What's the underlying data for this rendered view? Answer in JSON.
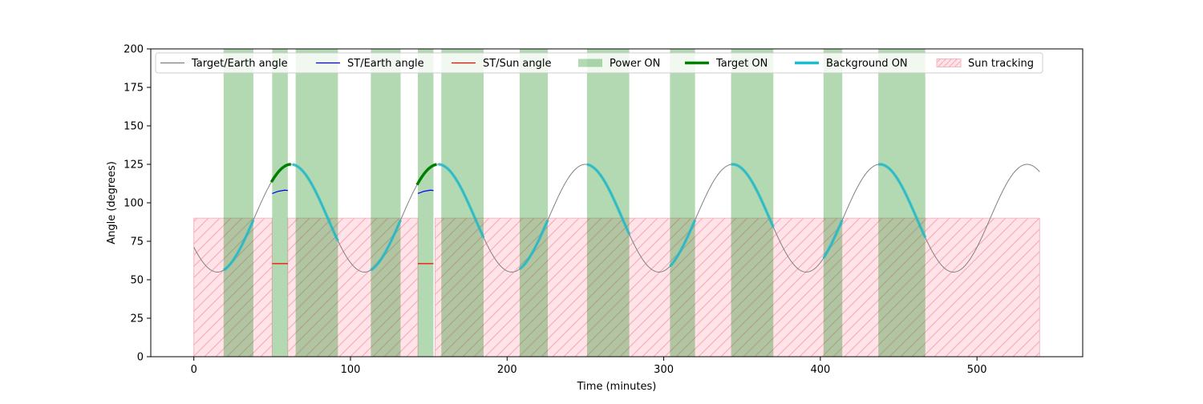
{
  "chart_data": {
    "type": "line",
    "title": "",
    "xlabel": "Time (minutes)",
    "ylabel": "Angle (degrees)",
    "xlim": [
      -27.5,
      567.5
    ],
    "ylim": [
      0,
      200
    ],
    "xticks": [
      0,
      100,
      200,
      300,
      400,
      500
    ],
    "yticks": [
      0,
      25,
      50,
      75,
      100,
      125,
      150,
      175,
      200
    ],
    "grid": false,
    "legend_position": "top",
    "legend": [
      {
        "label": "Target/Earth angle",
        "kind": "line",
        "color": "#808080"
      },
      {
        "label": "ST/Earth angle",
        "kind": "line",
        "color": "#0000ff"
      },
      {
        "label": "ST/Sun angle",
        "kind": "line",
        "color": "#ff0000"
      },
      {
        "label": "Power ON",
        "kind": "patch",
        "color": "#b2d8b2"
      },
      {
        "label": "Target ON",
        "kind": "thickline",
        "color": "#008000"
      },
      {
        "label": "Background ON",
        "kind": "thickline",
        "color": "#17becf"
      },
      {
        "label": "Sun tracking",
        "kind": "hatch",
        "color": "#ffc0cb"
      }
    ],
    "target_earth_angle": {
      "color": "#808080",
      "x_range": [
        0,
        540
      ],
      "model": {
        "mean": 90,
        "amplitude": 35,
        "period_minutes": 94,
        "max_at_minutes": [
          62,
          155,
          250,
          343,
          438,
          533
        ]
      }
    },
    "st_earth_angle": {
      "color": "#0000ff",
      "segments": [
        {
          "x": [
            50,
            54,
            58,
            60
          ],
          "y": [
            106,
            107.5,
            108.2,
            108
          ]
        },
        {
          "x": [
            143,
            147,
            151,
            153
          ],
          "y": [
            106,
            107.5,
            108.2,
            108
          ]
        }
      ]
    },
    "st_sun_angle": {
      "color": "#ff0000",
      "segments": [
        {
          "x": [
            50,
            60
          ],
          "y": [
            60.5,
            60.5
          ]
        },
        {
          "x": [
            143,
            153
          ],
          "y": [
            60.5,
            60.5
          ]
        }
      ]
    },
    "power_on": [
      [
        19,
        38
      ],
      [
        50,
        60
      ],
      [
        65,
        92
      ],
      [
        113,
        132
      ],
      [
        143,
        153
      ],
      [
        158,
        185
      ],
      [
        208,
        226
      ],
      [
        251,
        278
      ],
      [
        304,
        320
      ],
      [
        343,
        370
      ],
      [
        402,
        414
      ],
      [
        437,
        467
      ]
    ],
    "target_on": [
      [
        49.5,
        62
      ],
      [
        142.5,
        155
      ]
    ],
    "background_on": [
      [
        19,
        38
      ],
      [
        63,
        92
      ],
      [
        113,
        132
      ],
      [
        156,
        185
      ],
      [
        208,
        226
      ],
      [
        251,
        278
      ],
      [
        304,
        320
      ],
      [
        343,
        370
      ],
      [
        402,
        414
      ],
      [
        437,
        467
      ]
    ],
    "sun_tracking": {
      "y_range": [
        0,
        90
      ],
      "intervals": [
        [
          0,
          50
        ],
        [
          60,
          143
        ],
        [
          154,
          540
        ]
      ]
    }
  }
}
